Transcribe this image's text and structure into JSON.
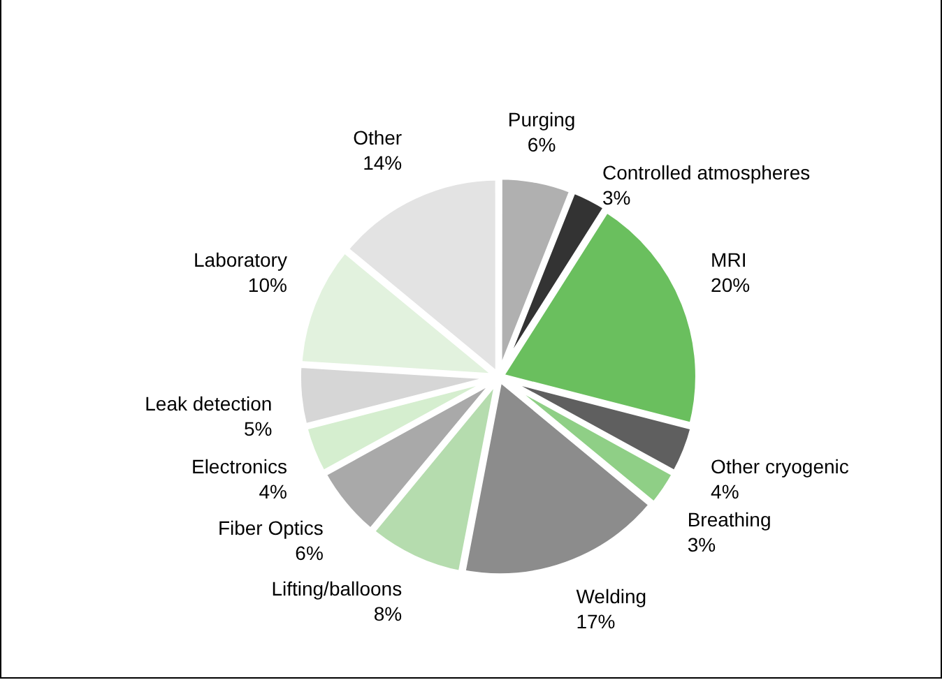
{
  "chart_data": {
    "type": "pie",
    "categories": [
      "Purging",
      "Controlled atmospheres",
      "MRI",
      "Other cryogenic",
      "Breathing",
      "Welding",
      "Lifting/balloons",
      "Fiber Optics",
      "Electronics",
      "Leak detection",
      "Laboratory",
      "Other"
    ],
    "values": [
      6,
      3,
      20,
      4,
      3,
      17,
      8,
      6,
      4,
      5,
      10,
      14
    ],
    "colors": [
      "#b0b0b0",
      "#333333",
      "#6abf5e",
      "#5f5f5f",
      "#8fcf86",
      "#8c8c8c",
      "#b5dcae",
      "#a9a9a9",
      "#d5eecf",
      "#d6d6d6",
      "#e2f2de",
      "#e3e3e3"
    ],
    "value_labels": [
      "6%",
      "3%",
      "20%",
      "4%",
      "3%",
      "17%",
      "8%",
      "6%",
      "4%",
      "5%",
      "10%",
      "14%"
    ],
    "legend": false
  }
}
